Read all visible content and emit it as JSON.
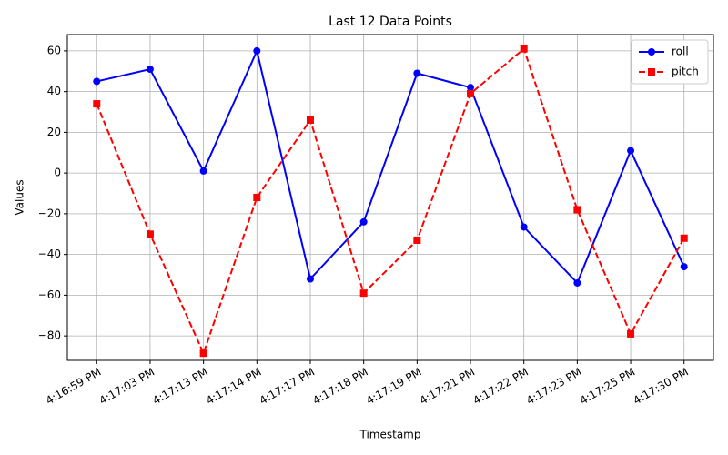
{
  "chart_data": {
    "type": "line",
    "title": "Last 12 Data Points",
    "x_label": "Timestamp",
    "y_label": "Values",
    "categories": [
      "4:16:59 PM",
      "4:17:03 PM",
      "4:17:13 PM",
      "4:17:14 PM",
      "4:17:17 PM",
      "4:17:18 PM",
      "4:17:19 PM",
      "4:17:21 PM",
      "4:17:22 PM",
      "4:17:23 PM",
      "4:17:25 PM",
      "4:17:30 PM"
    ],
    "series": [
      {
        "name": "roll",
        "color": "#0000ff",
        "marker": "circle",
        "dash": false,
        "values": [
          45,
          51,
          1,
          60,
          -52,
          -24,
          49,
          42,
          -26.5,
          -54,
          11,
          -46
        ]
      },
      {
        "name": "pitch",
        "color": "#ff0000",
        "marker": "square",
        "dash": true,
        "values": [
          34,
          -30,
          -88.5,
          -12,
          26,
          -59,
          -33,
          39,
          61,
          -18,
          -79,
          -32
        ]
      }
    ],
    "ylim": [
      -92,
      68
    ],
    "yticks": [
      {
        "value": -80,
        "label": "−80"
      },
      {
        "value": -60,
        "label": "−60"
      },
      {
        "value": -40,
        "label": "−40"
      },
      {
        "value": -20,
        "label": "−20"
      },
      0,
      20,
      40,
      60
    ],
    "grid": true,
    "legend": "upper right"
  }
}
